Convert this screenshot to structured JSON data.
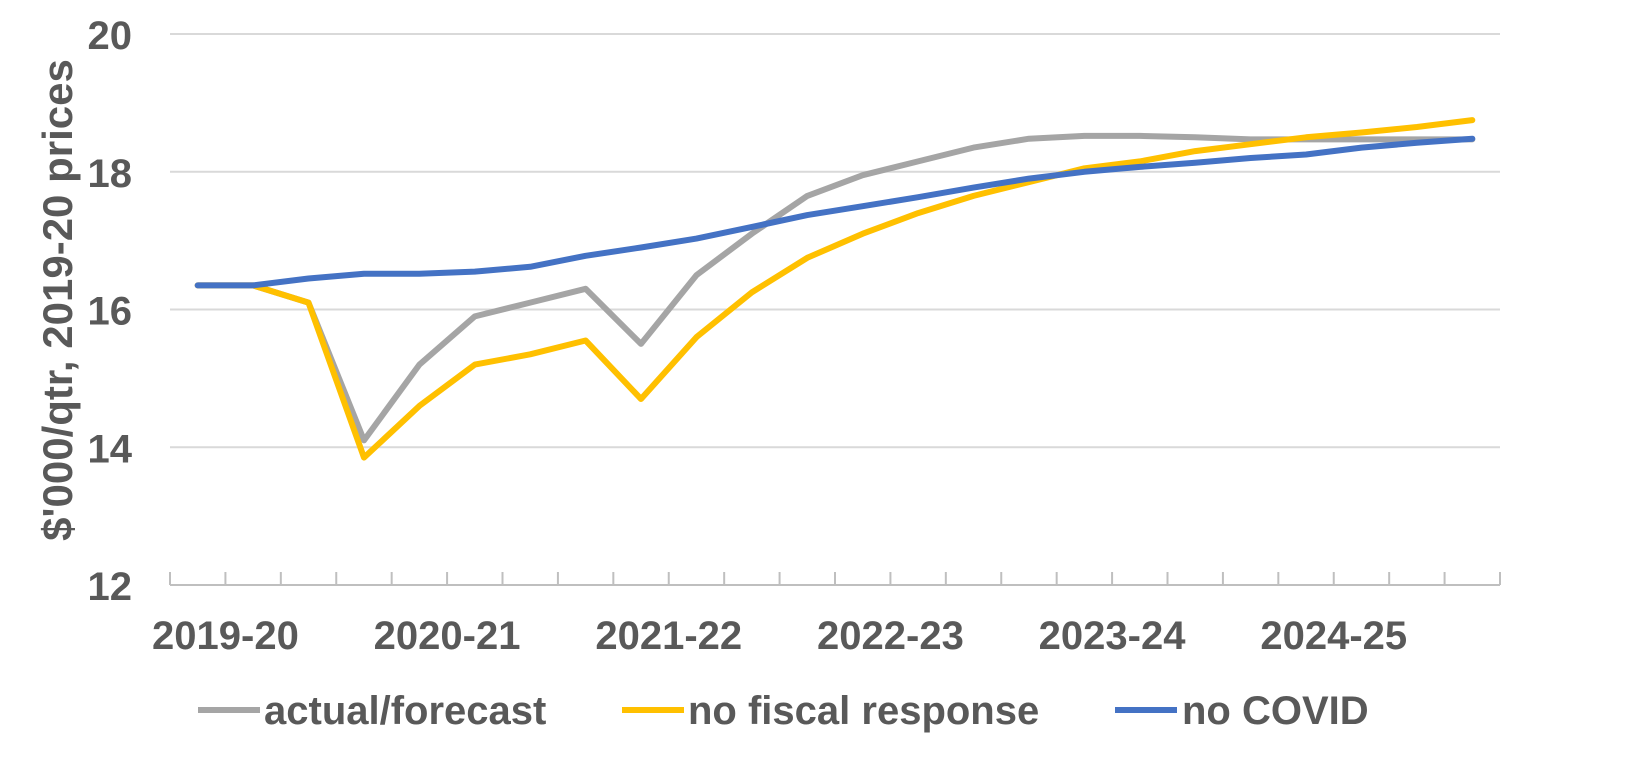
{
  "chart_data": {
    "type": "line",
    "ylabel": "$'000/qtr, 2019-20 prices",
    "xlabel": "",
    "ylim": [
      12,
      20
    ],
    "y_ticks": [
      "12",
      "14",
      "16",
      "18",
      "20"
    ],
    "x_period_labels": [
      "2019-20",
      "2020-21",
      "2021-22",
      "2022-23",
      "2023-24",
      "2024-25"
    ],
    "quarters_per_period": 4,
    "grid": "horizontal",
    "legend_position": "bottom",
    "series": [
      {
        "name": "actual/forecast",
        "color": "#A5A5A5",
        "values": [
          16.35,
          16.35,
          16.1,
          14.1,
          15.2,
          15.9,
          16.1,
          16.3,
          15.5,
          16.5,
          17.1,
          17.65,
          17.95,
          18.15,
          18.35,
          18.48,
          18.52,
          18.52,
          18.5,
          18.47,
          18.47,
          18.47,
          18.47,
          18.47
        ]
      },
      {
        "name": "no fiscal response",
        "color": "#FFC000",
        "values": [
          16.35,
          16.35,
          16.1,
          13.85,
          14.6,
          15.2,
          15.35,
          15.55,
          14.7,
          15.6,
          16.25,
          16.75,
          17.1,
          17.4,
          17.65,
          17.85,
          18.05,
          18.15,
          18.3,
          18.4,
          18.5,
          18.57,
          18.65,
          18.75
        ]
      },
      {
        "name": "no COVID",
        "color": "#4472C4",
        "values": [
          16.35,
          16.35,
          16.45,
          16.52,
          16.52,
          16.55,
          16.62,
          16.78,
          16.9,
          17.03,
          17.2,
          17.37,
          17.5,
          17.63,
          17.77,
          17.9,
          18.0,
          18.07,
          18.13,
          18.2,
          18.25,
          18.35,
          18.42,
          18.48
        ]
      }
    ]
  }
}
